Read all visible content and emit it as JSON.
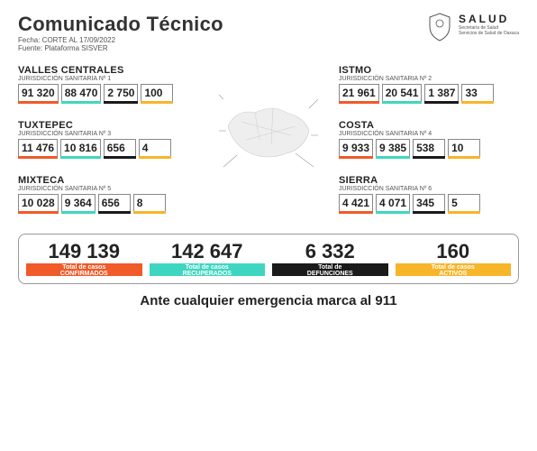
{
  "header": {
    "title": "Comunicado Técnico",
    "date": "Fecha: CORTE AL 17/09/2022",
    "source": "Fuente: Plataforma SISVER",
    "salud": "SALUD",
    "salud_sub1": "Secretaría de Salud",
    "salud_sub2": "Servicios de Salud de Oaxaca"
  },
  "regions_left": [
    {
      "name": "VALLES CENTRALES",
      "sub": "JURISDICCIÓN SANITARIA Nº 1",
      "v": [
        "91 320",
        "88 470",
        "2 750",
        "100"
      ]
    },
    {
      "name": "TUXTEPEC",
      "sub": "JURISDICCIÓN SANITARIA Nº 3",
      "v": [
        "11 476",
        "10 816",
        "656",
        "4"
      ]
    },
    {
      "name": "MIXTECA",
      "sub": "JURISDICCIÓN SANITARIA Nº 5",
      "v": [
        "10 028",
        "9 364",
        "656",
        "8"
      ]
    }
  ],
  "regions_right": [
    {
      "name": "ISTMO",
      "sub": "JURISDICCIÓN SANITARIA Nº 2",
      "v": [
        "21 961",
        "20 541",
        "1 387",
        "33"
      ]
    },
    {
      "name": "COSTA",
      "sub": "JURISDICCIÓN SANITARIA Nº 4",
      "v": [
        "9 933",
        "9 385",
        "538",
        "10"
      ]
    },
    {
      "name": "SIERRA",
      "sub": "JURISDICCIÓN SANITARIA Nº 6",
      "v": [
        "4 421",
        "4 071",
        "345",
        "5"
      ]
    }
  ],
  "totals": [
    {
      "num": "149 139",
      "label1": "Total de casos",
      "label2": "CONFIRMADOS"
    },
    {
      "num": "142 647",
      "label1": "Total de casos",
      "label2": "RECUPERADOS"
    },
    {
      "num": "6 332",
      "label1": "Total de",
      "label2": "DEFUNCIONES"
    },
    {
      "num": "160",
      "label1": "Total de casos",
      "label2": "ACTIVOS"
    }
  ],
  "footer": "Ante cualquier emergencia marca al 911",
  "colors": {
    "confirmed": "#f15a29",
    "recovered": "#3fd6c1",
    "deaths": "#1a1a1a",
    "active": "#f7b52a"
  }
}
